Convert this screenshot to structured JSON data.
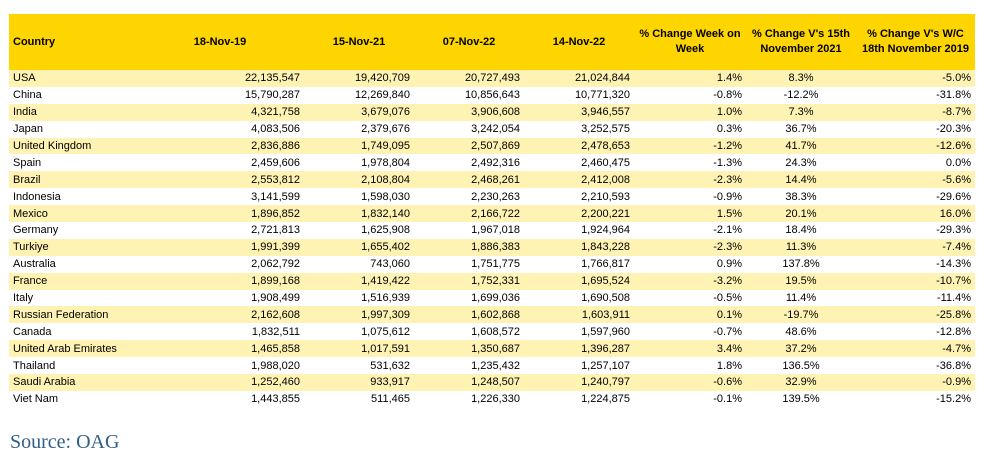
{
  "table": {
    "headers": [
      "Country",
      "18-Nov-19",
      "15-Nov-21",
      "07-Nov-22",
      "14-Nov-22",
      "% Change Week on Week",
      "% Change V's 15th November 2021",
      "% Change V's W/C 18th November 2019"
    ],
    "rows": [
      [
        "USA",
        "22,135,547",
        "19,420,709",
        "20,727,493",
        "21,024,844",
        "1.4%",
        "8.3%",
        "-5.0%"
      ],
      [
        "China",
        "15,790,287",
        "12,269,840",
        "10,856,643",
        "10,771,320",
        "-0.8%",
        "-12.2%",
        "-31.8%"
      ],
      [
        "India",
        "4,321,758",
        "3,679,076",
        "3,906,608",
        "3,946,557",
        "1.0%",
        "7.3%",
        "-8.7%"
      ],
      [
        "Japan",
        "4,083,506",
        "2,379,676",
        "3,242,054",
        "3,252,575",
        "0.3%",
        "36.7%",
        "-20.3%"
      ],
      [
        "United Kingdom",
        "2,836,886",
        "1,749,095",
        "2,507,869",
        "2,478,653",
        "-1.2%",
        "41.7%",
        "-12.6%"
      ],
      [
        "Spain",
        "2,459,606",
        "1,978,804",
        "2,492,316",
        "2,460,475",
        "-1.3%",
        "24.3%",
        "0.0%"
      ],
      [
        "Brazil",
        "2,553,812",
        "2,108,804",
        "2,468,261",
        "2,412,008",
        "-2.3%",
        "14.4%",
        "-5.6%"
      ],
      [
        "Indonesia",
        "3,141,599",
        "1,598,030",
        "2,230,263",
        "2,210,593",
        "-0.9%",
        "38.3%",
        "-29.6%"
      ],
      [
        "Mexico",
        "1,896,852",
        "1,832,140",
        "2,166,722",
        "2,200,221",
        "1.5%",
        "20.1%",
        "16.0%"
      ],
      [
        "Germany",
        "2,721,813",
        "1,625,908",
        "1,967,018",
        "1,924,964",
        "-2.1%",
        "18.4%",
        "-29.3%"
      ],
      [
        "Turkiye",
        "1,991,399",
        "1,655,402",
        "1,886,383",
        "1,843,228",
        "-2.3%",
        "11.3%",
        "-7.4%"
      ],
      [
        "Australia",
        "2,062,792",
        "743,060",
        "1,751,775",
        "1,766,817",
        "0.9%",
        "137.8%",
        "-14.3%"
      ],
      [
        "France",
        "1,899,168",
        "1,419,422",
        "1,752,331",
        "1,695,524",
        "-3.2%",
        "19.5%",
        "-10.7%"
      ],
      [
        "Italy",
        "1,908,499",
        "1,516,939",
        "1,699,036",
        "1,690,508",
        "-0.5%",
        "11.4%",
        "-11.4%"
      ],
      [
        "Russian Federation",
        "2,162,608",
        "1,997,309",
        "1,602,868",
        "1,603,911",
        "0.1%",
        "-19.7%",
        "-25.8%"
      ],
      [
        "Canada",
        "1,832,511",
        "1,075,612",
        "1,608,572",
        "1,597,960",
        "-0.7%",
        "48.6%",
        "-12.8%"
      ],
      [
        "United Arab Emirates",
        "1,465,858",
        "1,017,591",
        "1,350,687",
        "1,396,287",
        "3.4%",
        "37.2%",
        "-4.7%"
      ],
      [
        "Thailand",
        "1,988,020",
        "531,632",
        "1,235,432",
        "1,257,107",
        "1.8%",
        "136.5%",
        "-36.8%"
      ],
      [
        "Saudi Arabia",
        "1,252,460",
        "933,917",
        "1,248,507",
        "1,240,797",
        "-0.6%",
        "32.9%",
        "-0.9%"
      ],
      [
        "Viet Nam",
        "1,443,855",
        "511,465",
        "1,226,330",
        "1,224,875",
        "-0.1%",
        "139.5%",
        "-15.2%"
      ]
    ]
  },
  "source": "Source: OAG",
  "colors": {
    "header_bg": "#ffd500",
    "stripe_bg": "#fff3b3",
    "source_text": "#2f5d8a"
  }
}
